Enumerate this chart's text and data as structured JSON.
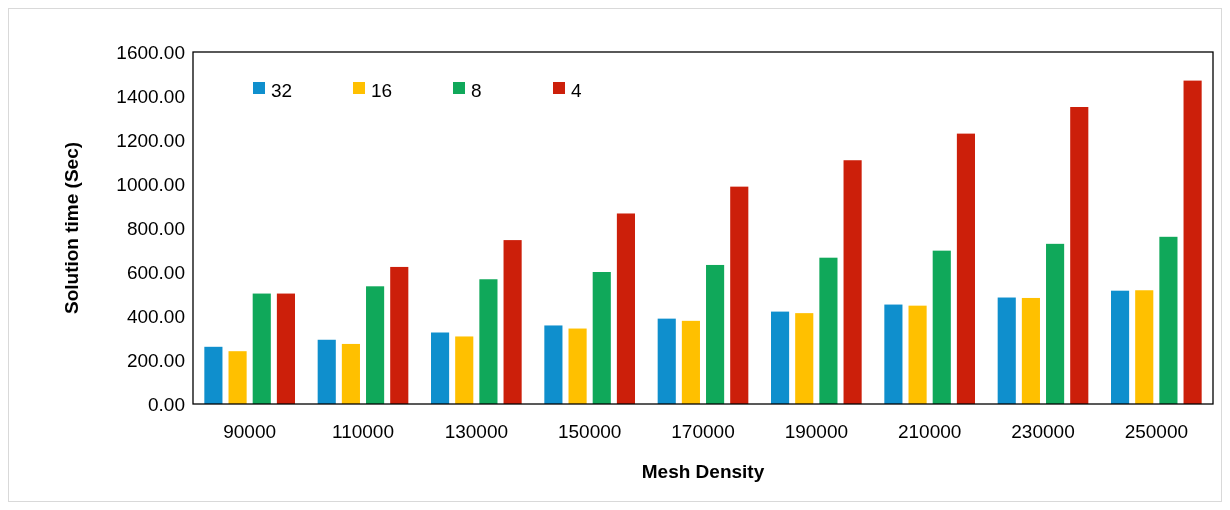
{
  "chart_data": {
    "type": "bar",
    "xlabel": "Mesh Density",
    "ylabel": "Solution time (Sec)",
    "categories": [
      "90000",
      "110000",
      "130000",
      "150000",
      "170000",
      "190000",
      "210000",
      "230000",
      "250000"
    ],
    "series": [
      {
        "name": "32",
        "color": "#0f8fcd",
        "values": [
          260,
          292,
          325,
          357,
          388,
          420,
          452,
          484,
          515
        ]
      },
      {
        "name": "16",
        "color": "#ffc000",
        "values": [
          240,
          273,
          307,
          343,
          378,
          413,
          447,
          482,
          517
        ]
      },
      {
        "name": "8",
        "color": "#10a85a",
        "values": [
          502,
          535,
          567,
          600,
          632,
          665,
          697,
          728,
          760
        ]
      },
      {
        "name": "4",
        "color": "#cc1f0a",
        "values": [
          502,
          623,
          745,
          866,
          988,
          1108,
          1229,
          1350,
          1470
        ]
      }
    ],
    "ylim": [
      0,
      1600
    ],
    "yticks": [
      {
        "value": 0,
        "label": "0.00"
      },
      {
        "value": 200,
        "label": "200.00"
      },
      {
        "value": 400,
        "label": "400.00"
      },
      {
        "value": 600,
        "label": "600.00"
      },
      {
        "value": 800,
        "label": "800.00"
      },
      {
        "value": 1000,
        "label": "1000.00"
      },
      {
        "value": 1200,
        "label": "1200.00"
      },
      {
        "value": 1400,
        "label": "1400.00"
      },
      {
        "value": 1600,
        "label": "1600.00"
      }
    ],
    "legend": "top left",
    "grid": false
  }
}
